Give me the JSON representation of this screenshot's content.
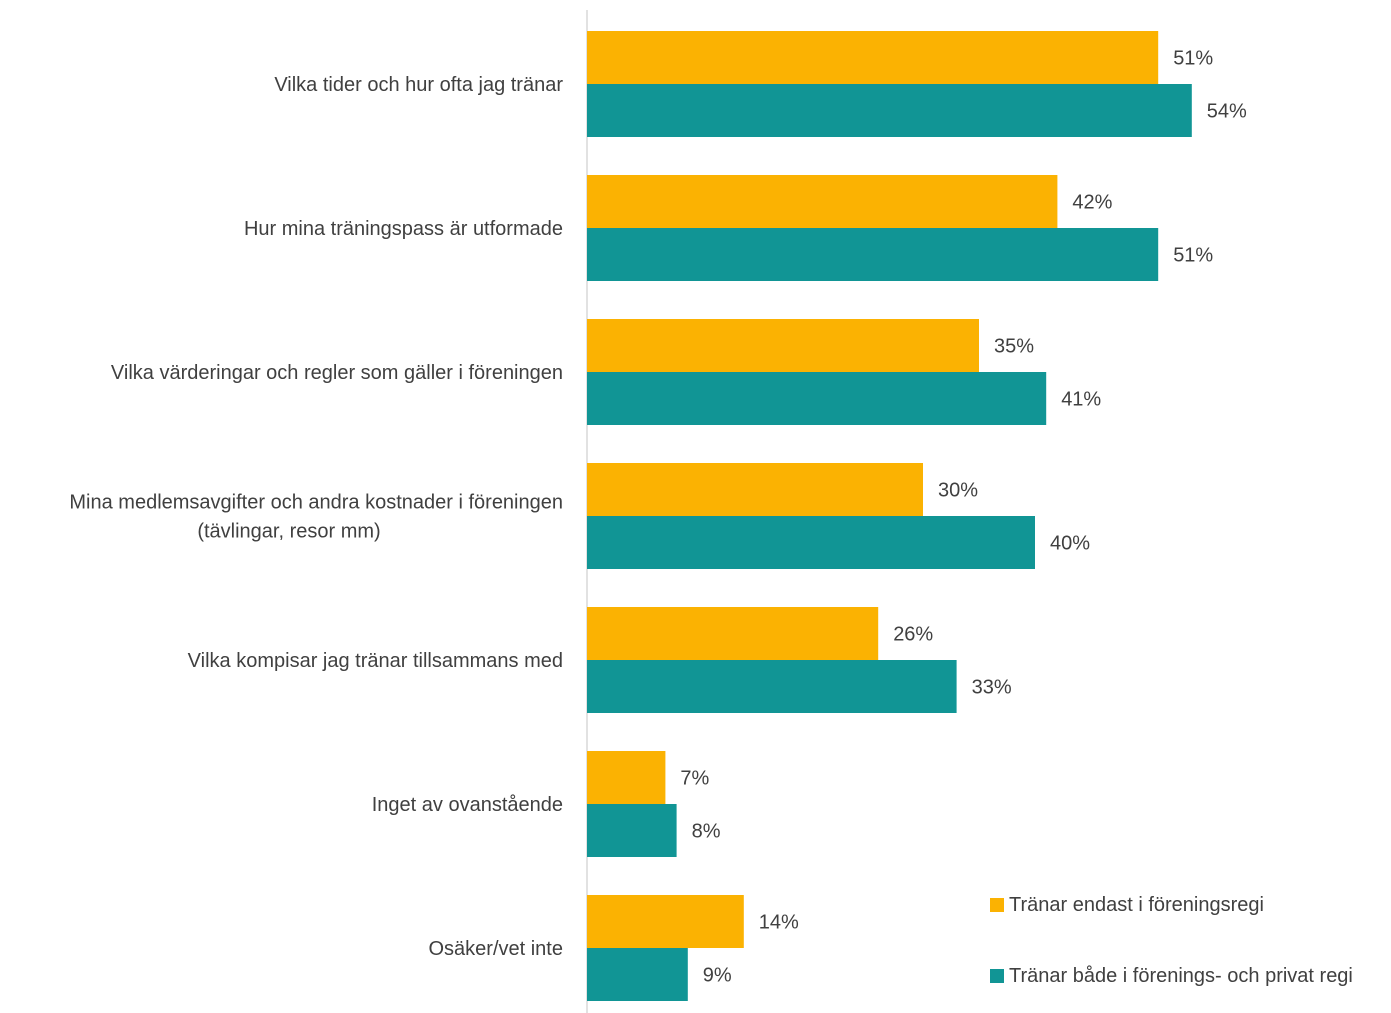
{
  "chart_data": {
    "type": "bar",
    "orientation": "horizontal",
    "categories": [
      [
        "Vilka tider och hur ofta jag tränar"
      ],
      [
        "Hur mina träningspass är utformade"
      ],
      [
        "Vilka värderingar och regler som gäller i föreningen"
      ],
      [
        "Mina medlemsavgifter och andra kostnader i föreningen",
        "(tävlingar, resor mm)"
      ],
      [
        "Vilka kompisar jag tränar tillsammans med"
      ],
      [
        "Inget av ovanstående"
      ],
      [
        "Osäker/vet inte"
      ]
    ],
    "series": [
      {
        "name": "Tränar endast i föreningsregi",
        "color": "#FBB202",
        "values": [
          51,
          42,
          35,
          30,
          26,
          7,
          14
        ],
        "labels": [
          "51%",
          "42%",
          "35%",
          "30%",
          "26%",
          "7%",
          "14%"
        ]
      },
      {
        "name": "Tränar både i förenings- och privat regi",
        "color": "#119595",
        "values": [
          54,
          51,
          41,
          40,
          33,
          8,
          9
        ],
        "labels": [
          "54%",
          "51%",
          "41%",
          "40%",
          "33%",
          "8%",
          "9%"
        ]
      }
    ],
    "xlim": [
      0,
      70
    ],
    "grid": false,
    "legend": "bottom-right",
    "title": "",
    "xlabel": "",
    "ylabel": ""
  }
}
